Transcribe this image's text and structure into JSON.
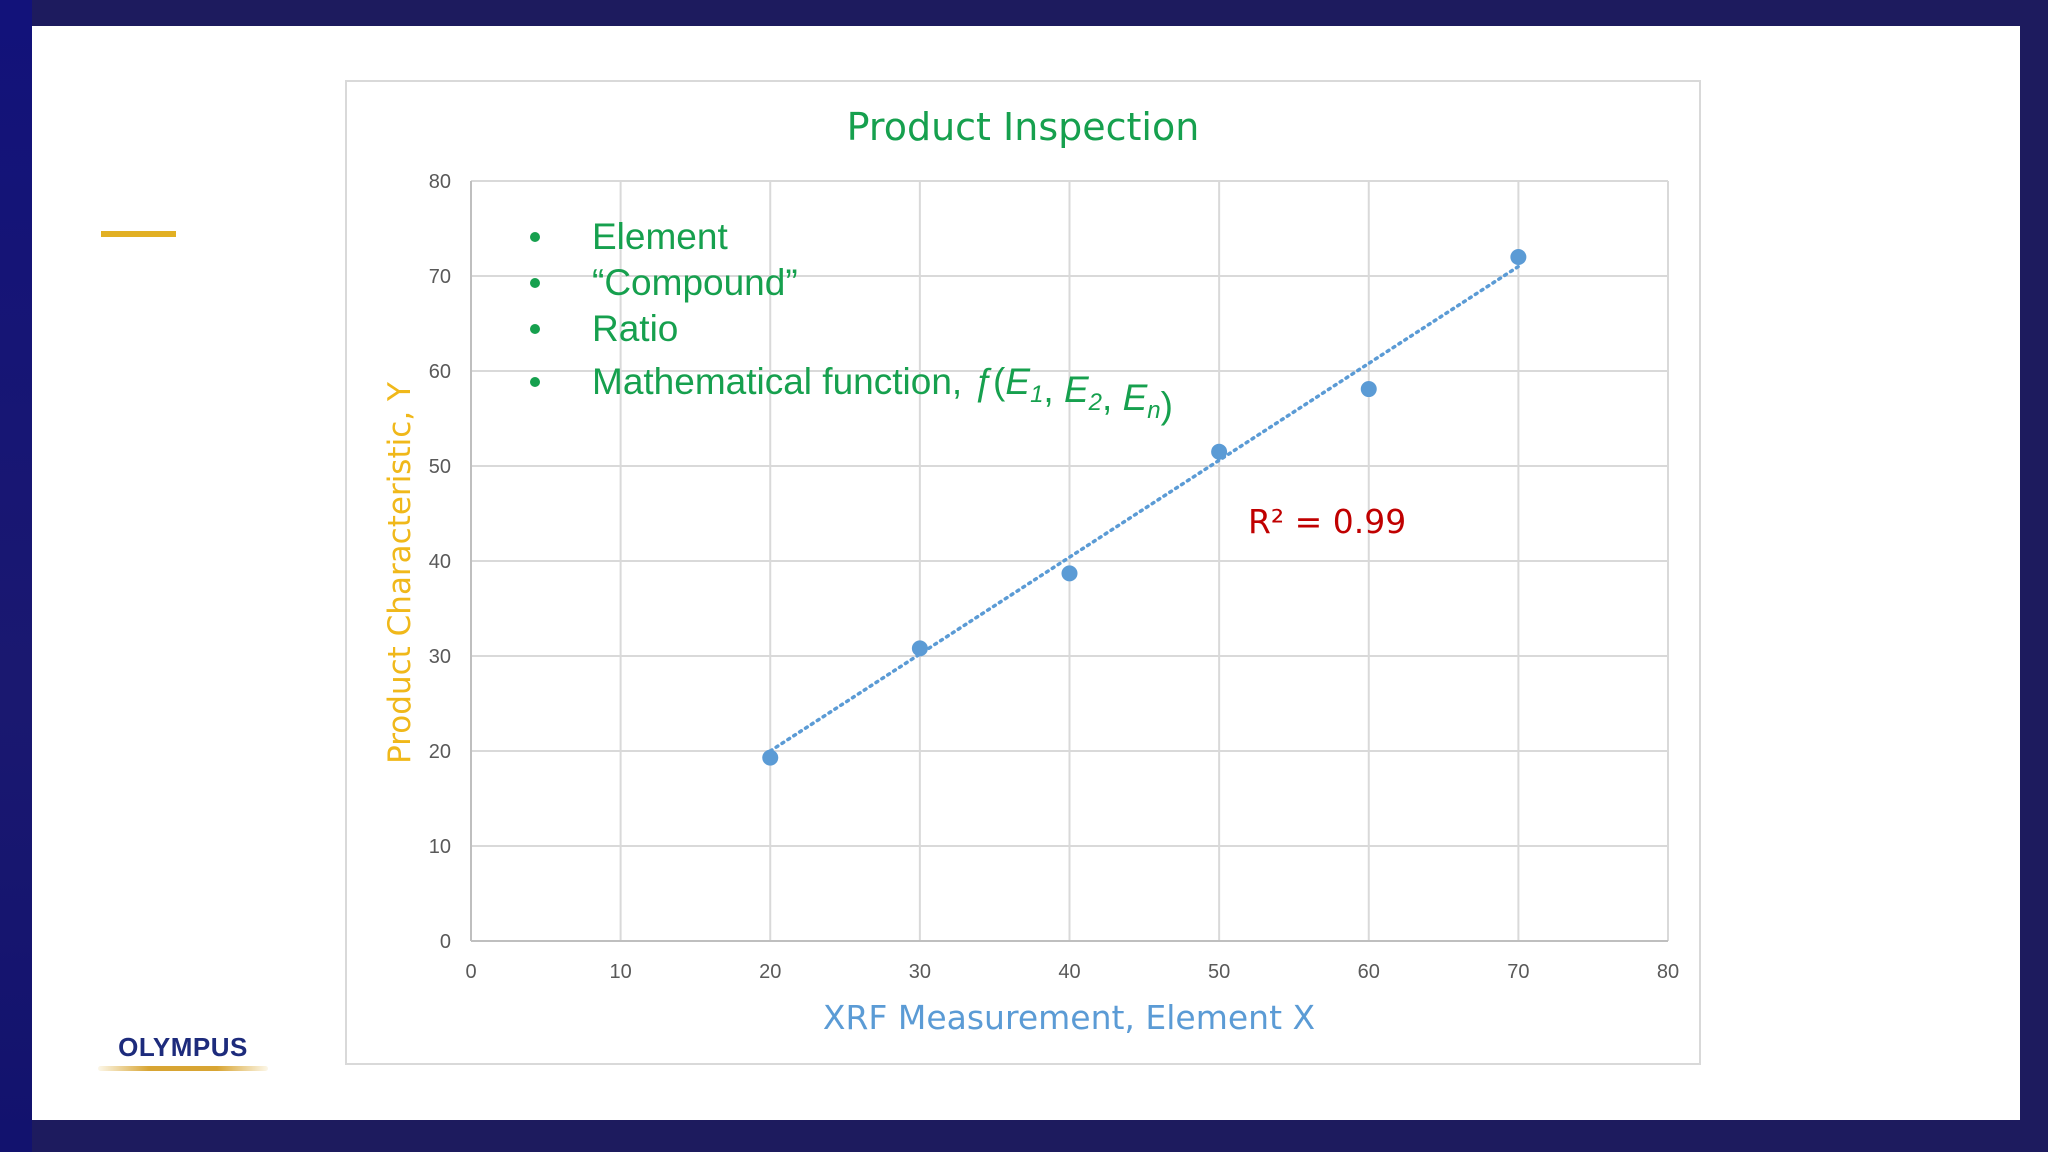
{
  "logo": {
    "text": "OLYMPUS"
  },
  "colors": {
    "frame": "#1d1b5e",
    "accent": "#e2b023",
    "title": "#16a04e",
    "ylabel": "#f0b81a",
    "xlabel": "#5b9bd5",
    "points": "#5b9bd5",
    "annotation": "#c00000"
  },
  "chart_data": {
    "type": "scatter",
    "title": "Product Inspection",
    "xlabel": "XRF Measurement, Element X",
    "ylabel": "Product Characteristic, Y",
    "xlim": [
      0,
      80
    ],
    "ylim": [
      0,
      80
    ],
    "xticks": [
      "0",
      "10",
      "20",
      "30",
      "40",
      "50",
      "60",
      "70",
      "80"
    ],
    "yticks": [
      "0",
      "10",
      "20",
      "30",
      "40",
      "50",
      "60",
      "70",
      "80"
    ],
    "grid": true,
    "points": [
      {
        "x": 20,
        "y": 19.3
      },
      {
        "x": 30,
        "y": 30.8
      },
      {
        "x": 40,
        "y": 38.7
      },
      {
        "x": 50,
        "y": 51.5
      },
      {
        "x": 60,
        "y": 58.1
      },
      {
        "x": 70,
        "y": 72.0
      }
    ],
    "trendline": {
      "style": "dotted",
      "from": {
        "x": 20,
        "y": 20
      },
      "to": {
        "x": 70,
        "y": 71
      }
    },
    "annotation": "R² = 0.99",
    "bullets": [
      "Element",
      "“Compound”",
      "Ratio",
      "Mathematical function, "
    ],
    "function_expr": {
      "f": "ƒ",
      "open": "(",
      "e1": "E",
      "s1": "1",
      "sep1": ", ",
      "e2": "E",
      "s2": "2",
      "sep2": ", ",
      "en": "E",
      "sn": "n",
      "close": ")"
    }
  }
}
